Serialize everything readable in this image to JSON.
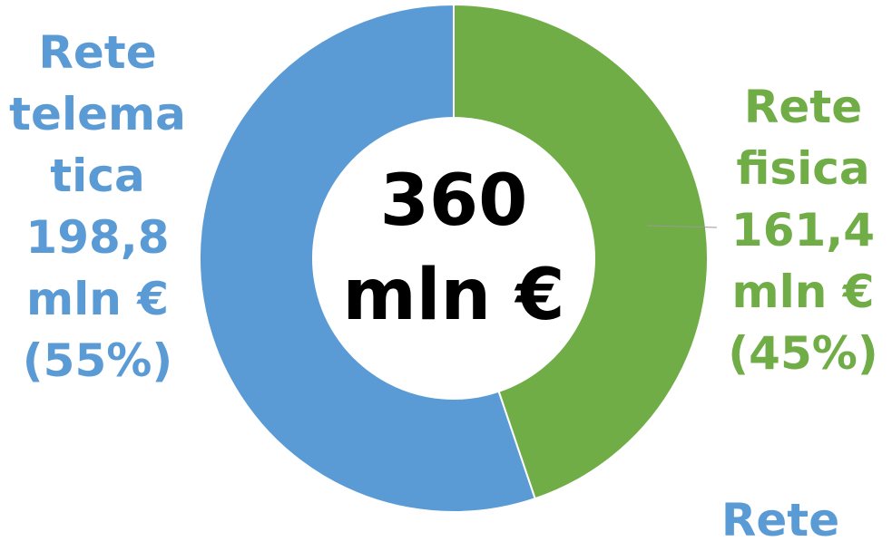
{
  "chart_data": {
    "type": "donut",
    "center_label": "360 mln €",
    "categories": [
      "Rete fisica",
      "Rete telematica"
    ],
    "values": [
      161.4,
      198.8
    ],
    "value_labels": [
      "161,4 mln €",
      "198,8 mln €"
    ],
    "percents": [
      45,
      55
    ],
    "percent_labels": [
      "(45%)",
      "(55%)"
    ],
    "colors": [
      "#70ad47",
      "#5b9bd5"
    ],
    "annotations": [
      "Rete"
    ]
  }
}
